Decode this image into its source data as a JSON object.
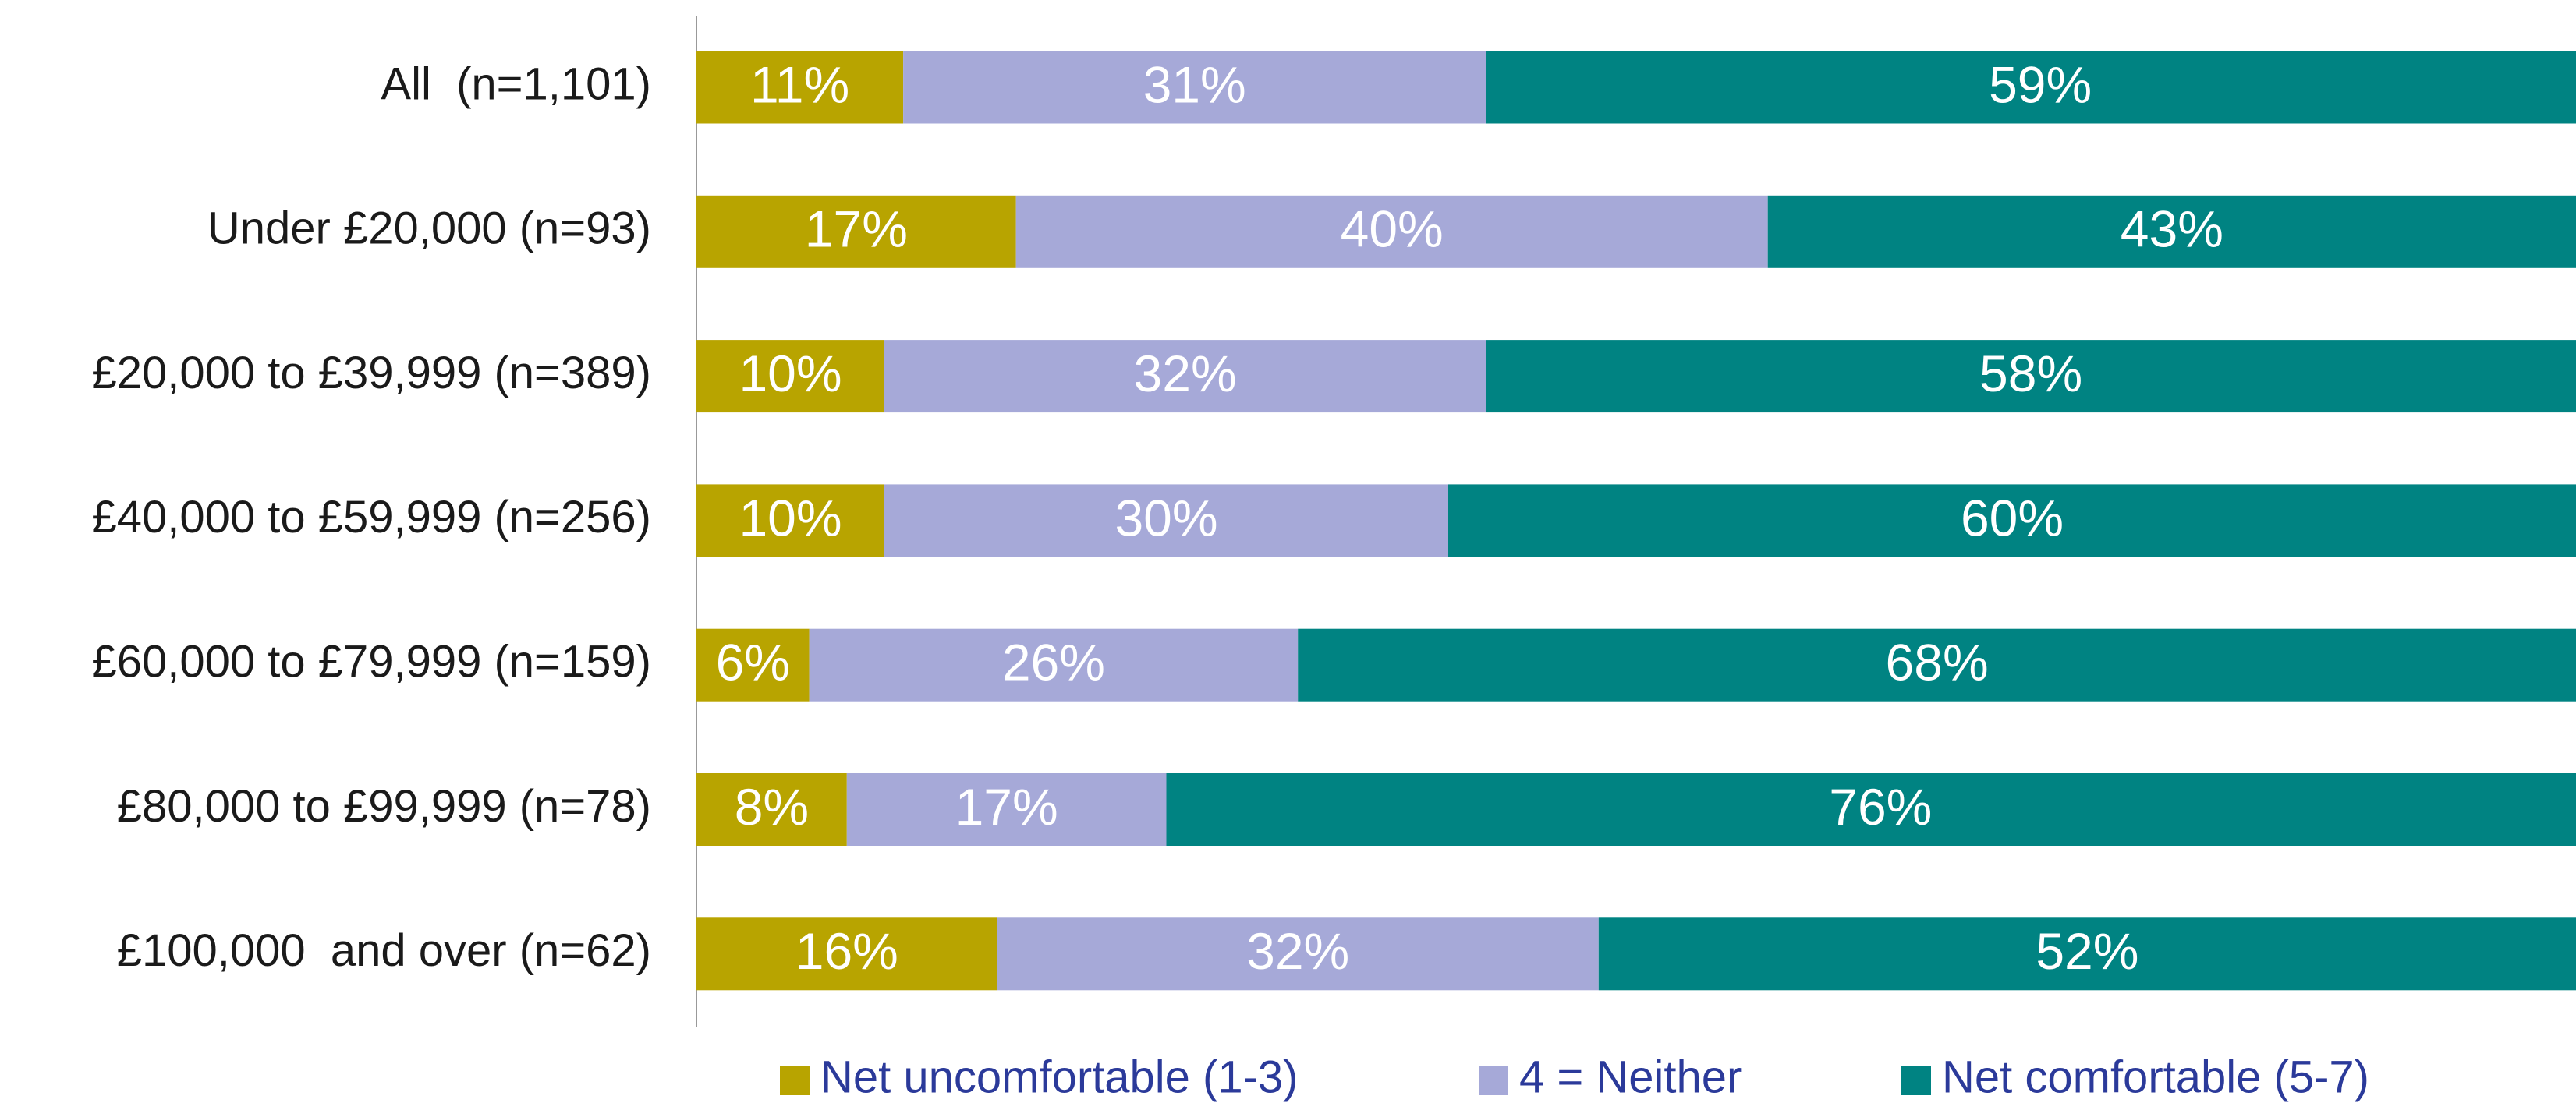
{
  "chart_data": {
    "type": "stacked-bar-horizontal",
    "categories": [
      "All  (n=1,101)",
      "Under £20,000 (n=93)",
      "£20,000 to £39,999 (n=389)",
      "£40,000 to £59,999 (n=256)",
      "£60,000 to £79,999 (n=159)",
      "£80,000 to £99,999 (n=78)",
      "£100,000  and over (n=62)"
    ],
    "series": [
      {
        "name": "Net uncomfortable (1-3)",
        "color": "#b8a400",
        "values": [
          11,
          17,
          10,
          10,
          6,
          8,
          16
        ],
        "value_labels": [
          "11%",
          "17%",
          "10%",
          "10%",
          "6%",
          "8%",
          "16%"
        ]
      },
      {
        "name": "4 = Neither",
        "color": "#a6a9d8",
        "values": [
          31,
          40,
          32,
          30,
          26,
          17,
          32
        ],
        "value_labels": [
          "31%",
          "40%",
          "32%",
          "30%",
          "26%",
          "17%",
          "32%"
        ]
      },
      {
        "name": "Net comfortable (5-7)",
        "color": "#008382",
        "values": [
          59,
          43,
          58,
          60,
          68,
          76,
          52
        ],
        "value_labels": [
          "59%",
          "43%",
          "58%",
          "60%",
          "68%",
          "76%",
          "52%"
        ]
      }
    ],
    "xlim": [
      0,
      100
    ],
    "legend": "bottom"
  }
}
